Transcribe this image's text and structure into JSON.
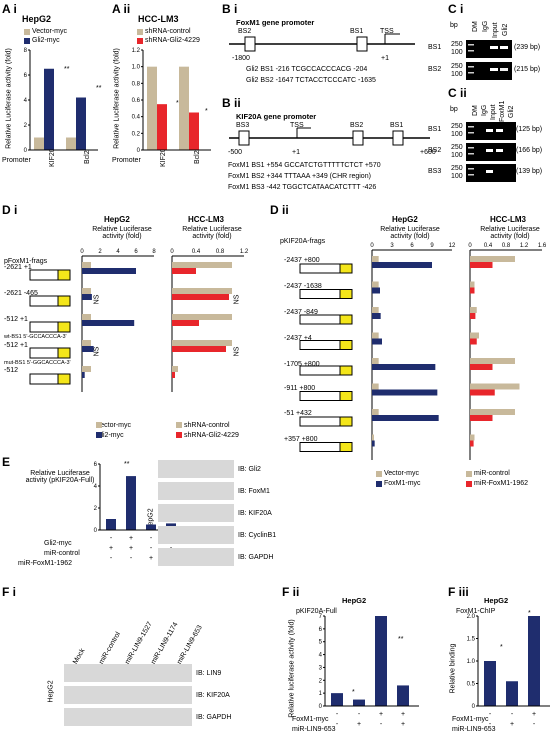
{
  "colors": {
    "tan": "#c8b99b",
    "navy": "#1f2d6e",
    "red": "#e8262b",
    "gray": "#999999",
    "yellow": "#f4e61a"
  },
  "panels": {
    "Ai": "A i",
    "Aii": "A ii",
    "Bi": "B i",
    "Bii": "B ii",
    "Ci": "C i",
    "Cii": "C ii",
    "Di": "D i",
    "Dii": "D ii",
    "E": "E",
    "Fi": "F i",
    "Fii": "F ii",
    "Fiii": "F iii"
  },
  "Ai": {
    "title": "HepG2",
    "legend": [
      "Vector-myc",
      "Gli2-myc"
    ],
    "ylabel": "Relative Luciferase activity (fold)",
    "xlabel_prefix": "Promoter",
    "categories": [
      "KIF20A",
      "Bcl2"
    ],
    "yticks": [
      "0",
      "2",
      "4",
      "6",
      "8"
    ],
    "sig": [
      "**",
      "**"
    ]
  },
  "Aii": {
    "title": "HCC-LM3",
    "legend": [
      "shRNA-control",
      "shRNA-Gli2-4229"
    ],
    "ylabel": "Relative Luciferase activity (fold)",
    "xlabel_prefix": "Promoter",
    "categories": [
      "KIF20A",
      "Bcl2"
    ],
    "yticks": [
      "0",
      "0.2",
      "0.4",
      "0.6",
      "0.8",
      "1.0",
      "1.2"
    ],
    "sig": [
      "*",
      "*"
    ]
  },
  "Bi": {
    "title": "FoxM1 gene promoter",
    "labels": [
      "BS2",
      "BS1",
      "TSS"
    ],
    "pos": [
      "-1800",
      "+1"
    ],
    "seqs": [
      "Gli2 BS1 -216  TCGCCACCCACG -204",
      "Gli2 BS2 -1647 TCTACCTCCCATC -1635"
    ]
  },
  "Bii": {
    "title": "KIF20A gene promoter",
    "labels": [
      "BS3",
      "TSS",
      "BS2",
      "BS1"
    ],
    "pos": [
      "-500",
      "+1",
      "+600"
    ],
    "seqs": [
      "FoxM1 BS1 +554 GCCATCTGTTTTTCTCT +570",
      "FoxM1 BS2 +344 TTTAAA +349 (CHR region)",
      "FoxM1 BS3 -442 TGGCTCATAACATCTTT -426"
    ]
  },
  "Ci": {
    "bp": "bp",
    "lanes": [
      "DM",
      "IgG",
      "Input",
      "Gli2"
    ],
    "rows": [
      {
        "name": "BS1",
        "size": "(239 bp)"
      },
      {
        "name": "BS2",
        "size": "(215 bp)"
      }
    ],
    "markers": [
      "250",
      "100"
    ]
  },
  "Cii": {
    "bp": "bp",
    "lanes": [
      "DM",
      "IgG",
      "Input",
      "FoxM1",
      "Gli2"
    ],
    "rows": [
      {
        "name": "BS1",
        "size": "(125 bp)"
      },
      {
        "name": "BS2",
        "size": "(166 bp)"
      },
      {
        "name": "BS3",
        "size": "(139 bp)"
      }
    ],
    "markers": [
      "250",
      "100"
    ]
  },
  "Di": {
    "construct_label": "pFoxM1-frags",
    "h1": "HepG2",
    "h2": "HCC-LM3",
    "axis": "Relative Luciferase activity (fold)",
    "ticks1": [
      "0",
      "2",
      "4",
      "6",
      "8"
    ],
    "ticks2": [
      "0",
      "0.4",
      "0.8",
      "1.2"
    ],
    "constructs": [
      "-2621 +1",
      "-2621 -465",
      "-512 +1",
      "-512 +1",
      "-512"
    ],
    "wt": "wt-BS1  5'-GCCACCCA-3'",
    "mut": "mut-BS1  5'-GGCACCCA-3'",
    "legend1": [
      "Vector-myc",
      "Gli2-myc"
    ],
    "legend2": [
      "shRNA-control",
      "shRNA-Gli2-4229"
    ],
    "ns": "NS",
    "luc": "Luc"
  },
  "Dii": {
    "construct_label": "pKIF20A-frags",
    "h1": "HepG2",
    "h2": "HCC-LM3",
    "axis": "Relative Luciferase activity (fold)",
    "ticks1": [
      "0",
      "3",
      "6",
      "9",
      "12"
    ],
    "ticks2": [
      "0",
      "0.4",
      "0.8",
      "1.2",
      "1.6"
    ],
    "constructs": [
      "-2437 +800",
      "-2437 -1638",
      "-2437 -849",
      "-2437 +4",
      "-1705 +800",
      "-911 +800",
      "-51 +432",
      "+357 +800"
    ],
    "legend1": [
      "Vector-myc",
      "FoxM1-myc"
    ],
    "legend2": [
      "miR-control",
      "miR-FoxM1-1962"
    ]
  },
  "E": {
    "ylabel": "Relative Luciferase activity (pKIF20A-Full)",
    "rows": [
      "Gli2-myc",
      "miR-control",
      "miR-FoxM1-1962"
    ],
    "signs": [
      [
        "-",
        "+",
        "-",
        "+"
      ],
      [
        "+",
        "+",
        "-",
        "-"
      ],
      [
        "-",
        "-",
        "+",
        "+"
      ]
    ],
    "ticks": [
      "0",
      "2",
      "4",
      "6"
    ],
    "sig": "**",
    "blots": [
      "IB: Gli2",
      "IB: FoxM1",
      "IB: KIF20A",
      "IB: CyclinB1",
      "IB: GAPDH"
    ],
    "cell": "HepG2",
    "values": [
      1.0,
      4.9,
      0.5,
      0.6
    ]
  },
  "Fi": {
    "lanes": [
      "Mock",
      "miR-control",
      "miR-LIN9-1527",
      "miR-LIN9-1174",
      "miR-LIN9-653"
    ],
    "blots": [
      "IB: LIN9",
      "IB: KIF20A",
      "IB: GAPDH"
    ],
    "cell": "HepG2"
  },
  "Fii": {
    "title": "HepG2",
    "subtitle": "pKIF20A-Full",
    "ylabel": "Relative luciferase activity (fold)",
    "ticks": [
      "0",
      "1",
      "2",
      "3",
      "4",
      "5",
      "6",
      "7"
    ],
    "rows": [
      "FoxM1-myc",
      "miR-LIN9-653"
    ],
    "signs": [
      [
        "-",
        "-",
        "+",
        "+"
      ],
      [
        "-",
        "+",
        "-",
        "+"
      ]
    ],
    "sig": [
      "*",
      "**"
    ],
    "values": [
      1.0,
      0.5,
      7.0,
      1.6
    ]
  },
  "Fiii": {
    "title": "HepG2",
    "subtitle": "FoxM1-ChIP",
    "ylabel": "Relative binding",
    "ticks": [
      "0",
      "0.5",
      "1.0",
      "1.5",
      "2.0"
    ],
    "rows": [
      "FoxM1-myc",
      "miR-LIN9-653"
    ],
    "signs": [
      [
        "-",
        "-",
        "+",
        "+"
      ],
      [
        "-",
        "+",
        "-",
        "+"
      ]
    ],
    "sig": [
      "*",
      "*"
    ],
    "values": [
      1.0,
      0.55,
      2.0,
      1.1
    ]
  },
  "chart_data": [
    {
      "type": "bar",
      "panel": "A i",
      "title": "HepG2",
      "categories": [
        "KIF20A",
        "Bcl2"
      ],
      "series": [
        {
          "name": "Vector-myc",
          "values": [
            1.0,
            1.0
          ]
        },
        {
          "name": "Gli2-myc",
          "values": [
            6.5,
            4.2
          ]
        }
      ],
      "ylabel": "Relative Luciferase activity (fold)",
      "ylim": [
        0,
        8
      ]
    },
    {
      "type": "bar",
      "panel": "A ii",
      "title": "HCC-LM3",
      "categories": [
        "KIF20A",
        "Bcl2"
      ],
      "series": [
        {
          "name": "shRNA-control",
          "values": [
            1.0,
            1.0
          ]
        },
        {
          "name": "shRNA-Gli2-4229",
          "values": [
            0.55,
            0.45
          ]
        }
      ],
      "ylabel": "Relative Luciferase activity (fold)",
      "ylim": [
        0,
        1.2
      ]
    },
    {
      "type": "bar",
      "panel": "D i HepG2",
      "series": [
        {
          "name": "Vector-myc",
          "values": [
            1,
            1,
            1,
            1,
            1
          ]
        },
        {
          "name": "Gli2-myc",
          "values": [
            6,
            1.1,
            5.8,
            1.3,
            0.3
          ]
        }
      ],
      "xlim": [
        0,
        8
      ]
    },
    {
      "type": "bar",
      "panel": "D i HCC-LM3",
      "series": [
        {
          "name": "shRNA-control",
          "values": [
            1,
            1,
            1,
            1,
            0.1
          ]
        },
        {
          "name": "shRNA-Gli2-4229",
          "values": [
            0.4,
            0.95,
            0.45,
            0.9,
            0.05
          ]
        }
      ],
      "xlim": [
        0,
        1.2
      ]
    },
    {
      "type": "bar",
      "panel": "D ii HepG2",
      "series": [
        {
          "name": "Vector-myc",
          "values": [
            1,
            1,
            1,
            1,
            1,
            1,
            1,
            0.3
          ]
        },
        {
          "name": "FoxM1-myc",
          "values": [
            9,
            1.2,
            1.3,
            1.5,
            9.5,
            9.8,
            10,
            0.4
          ]
        }
      ],
      "xlim": [
        0,
        12
      ]
    },
    {
      "type": "bar",
      "panel": "D ii HCC-LM3",
      "series": [
        {
          "name": "miR-control",
          "values": [
            1,
            0.1,
            0.15,
            0.2,
            1,
            1.1,
            1,
            0.1
          ]
        },
        {
          "name": "miR-FoxM1-1962",
          "values": [
            0.5,
            0.1,
            0.12,
            0.15,
            0.5,
            0.55,
            0.5,
            0.08
          ]
        }
      ],
      "xlim": [
        0,
        1.6
      ]
    },
    {
      "type": "bar",
      "panel": "E",
      "values": [
        1.0,
        4.9,
        0.5,
        0.6
      ],
      "ylim": [
        0,
        6
      ]
    },
    {
      "type": "bar",
      "panel": "F ii",
      "values": [
        1.0,
        0.5,
        7.0,
        1.6
      ],
      "ylim": [
        0,
        7
      ]
    },
    {
      "type": "bar",
      "panel": "F iii",
      "values": [
        1.0,
        0.55,
        2.0,
        1.1
      ],
      "ylim": [
        0,
        2.0
      ]
    }
  ]
}
